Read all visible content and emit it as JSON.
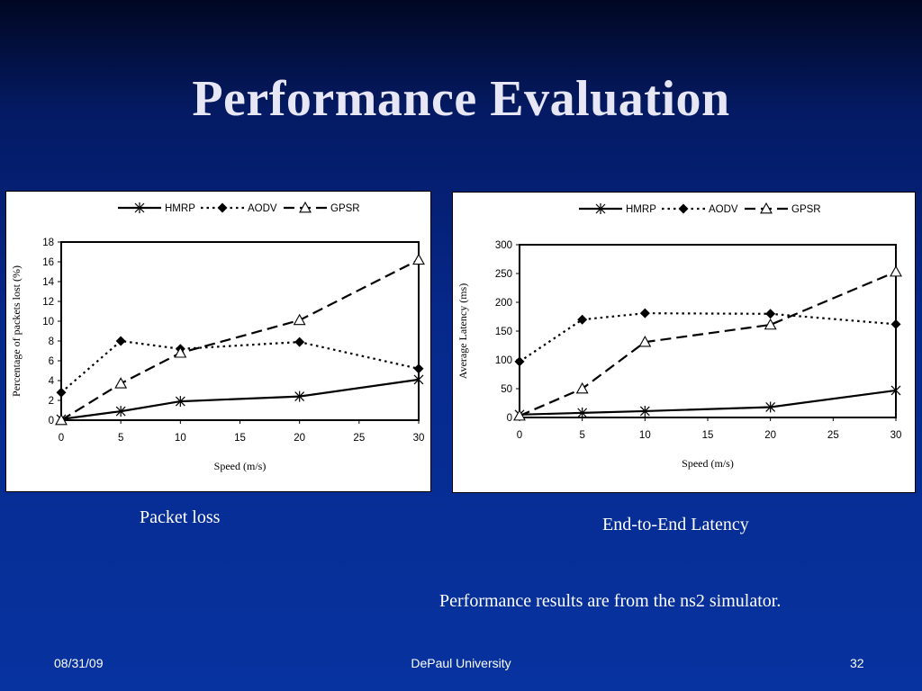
{
  "slide": {
    "title": "Performance Evaluation",
    "caption_left": "Packet loss",
    "caption_right": "End-to-End Latency",
    "note": "Performance results are from the ns2 simulator.",
    "footer_date": "08/31/09",
    "footer_org": "DePaul University",
    "footer_page": "32"
  },
  "chart_data": [
    {
      "type": "line",
      "title": "",
      "xlabel": "Speed (m/s)",
      "ylabel": "Percentage of packets lost (%)",
      "x": [
        0,
        5,
        10,
        20,
        30
      ],
      "xticks": [
        0,
        5,
        10,
        15,
        20,
        25,
        30
      ],
      "xlim": [
        0,
        30
      ],
      "ylim": [
        0,
        18
      ],
      "yticks": [
        0,
        2,
        4,
        6,
        8,
        10,
        12,
        14,
        16,
        18
      ],
      "legend_position": "top",
      "grid": false,
      "series": [
        {
          "name": "HMRP",
          "values": [
            0.1,
            0.9,
            1.9,
            2.4,
            4.1
          ],
          "style": "solid",
          "marker": "asterisk"
        },
        {
          "name": "AODV",
          "values": [
            2.8,
            8.0,
            7.2,
            7.9,
            5.2
          ],
          "style": "dotted",
          "marker": "diamond"
        },
        {
          "name": "GPSR",
          "values": [
            0.0,
            3.7,
            6.8,
            10.1,
            16.2
          ],
          "style": "dashed",
          "marker": "triangle"
        }
      ]
    },
    {
      "type": "line",
      "title": "",
      "xlabel": "Speed (m/s)",
      "ylabel": "Average Latency (ms)",
      "x": [
        0,
        5,
        10,
        20,
        30
      ],
      "xticks": [
        0,
        5,
        10,
        15,
        20,
        25,
        30
      ],
      "xlim": [
        0,
        30
      ],
      "ylim": [
        0,
        300
      ],
      "yticks": [
        0,
        50,
        100,
        150,
        200,
        250,
        300
      ],
      "legend_position": "top",
      "grid": false,
      "series": [
        {
          "name": "HMRP",
          "values": [
            5,
            8,
            11,
            18,
            47
          ],
          "style": "solid",
          "marker": "asterisk"
        },
        {
          "name": "AODV",
          "values": [
            97,
            170,
            181,
            180,
            162
          ],
          "style": "dotted",
          "marker": "diamond"
        },
        {
          "name": "GPSR",
          "values": [
            3,
            50,
            131,
            161,
            253
          ],
          "style": "dashed",
          "marker": "triangle"
        }
      ]
    }
  ]
}
